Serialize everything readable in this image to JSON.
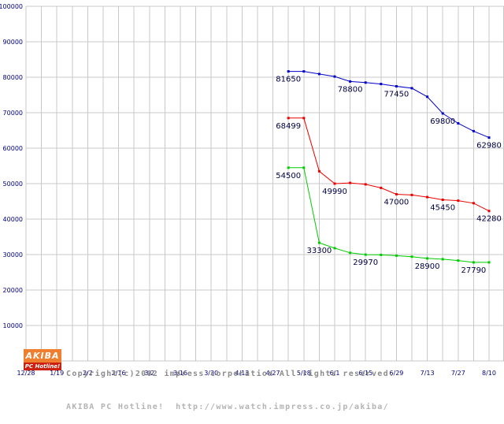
{
  "chart_data": {
    "type": "line",
    "title": "",
    "grid": true,
    "grid_color": "#c8c8c8",
    "axis_label_color": "#000080",
    "point_label_color": "#000044",
    "x_axis": {
      "tick_labels": [
        "12/28",
        "1/19",
        "2/2",
        "2/16",
        "3/2",
        "3/16",
        "3/30",
        "4/13",
        "4/27",
        "5/18",
        "6/1",
        "6/15",
        "6/29",
        "7/13",
        "7/27",
        "8/10"
      ]
    },
    "y_axis": {
      "min": 0,
      "max": 100000,
      "step": 10000,
      "tick_labels": [
        "100000",
        "90000",
        "80000",
        "70000",
        "60000",
        "50000",
        "40000",
        "30000",
        "20000",
        "10000"
      ]
    },
    "series": [
      {
        "name": "series-blue",
        "color": "#0000cc",
        "points": [
          [
            17,
            81650,
            1
          ],
          [
            18,
            81650,
            0
          ],
          [
            19,
            80900,
            0
          ],
          [
            20,
            80200,
            0
          ],
          [
            21,
            78800,
            1
          ],
          [
            22,
            78500,
            0
          ],
          [
            23,
            78100,
            0
          ],
          [
            24,
            77450,
            1
          ],
          [
            25,
            76900,
            0
          ],
          [
            26,
            74500,
            0
          ],
          [
            27,
            69800,
            1
          ],
          [
            28,
            67000,
            0
          ],
          [
            29,
            64800,
            0
          ],
          [
            30,
            62980,
            1
          ]
        ]
      },
      {
        "name": "series-red",
        "color": "#ee0000",
        "points": [
          [
            17,
            68499,
            1
          ],
          [
            18,
            68499,
            0
          ],
          [
            19,
            53500,
            0
          ],
          [
            20,
            49990,
            1
          ],
          [
            21,
            50200,
            0
          ],
          [
            22,
            49800,
            0
          ],
          [
            23,
            48800,
            0
          ],
          [
            24,
            47000,
            1
          ],
          [
            25,
            46800,
            0
          ],
          [
            26,
            46200,
            0
          ],
          [
            27,
            45450,
            1
          ],
          [
            28,
            45200,
            0
          ],
          [
            29,
            44500,
            0
          ],
          [
            30,
            42280,
            1
          ]
        ]
      },
      {
        "name": "series-green",
        "color": "#00cc00",
        "points": [
          [
            17,
            54500,
            1
          ],
          [
            18,
            54500,
            0
          ],
          [
            19,
            33300,
            1
          ],
          [
            20,
            31800,
            0
          ],
          [
            21,
            30500,
            0
          ],
          [
            22,
            29970,
            1
          ],
          [
            23,
            29900,
            0
          ],
          [
            24,
            29700,
            0
          ],
          [
            25,
            29400,
            0
          ],
          [
            26,
            28900,
            1
          ],
          [
            27,
            28700,
            0
          ],
          [
            28,
            28300,
            0
          ],
          [
            29,
            27790,
            1
          ],
          [
            30,
            27790,
            0
          ]
        ]
      }
    ]
  },
  "footer": {
    "copyright_line1": "Copyright(c)2002 impress corporation All rights reserved.",
    "copyright_line2": "AKIBA PC Hotline!  http://www.watch.impress.co.jp/akiba/",
    "copyright_color": "#8c8c8c",
    "credit_color": "#b4b4b4",
    "logo": {
      "line1": "AKIBA",
      "line2": "PC Hotline!",
      "bg_top": "#ef7f2f",
      "bg_bottom": "#cc2010",
      "text_color": "#ffffff"
    }
  }
}
